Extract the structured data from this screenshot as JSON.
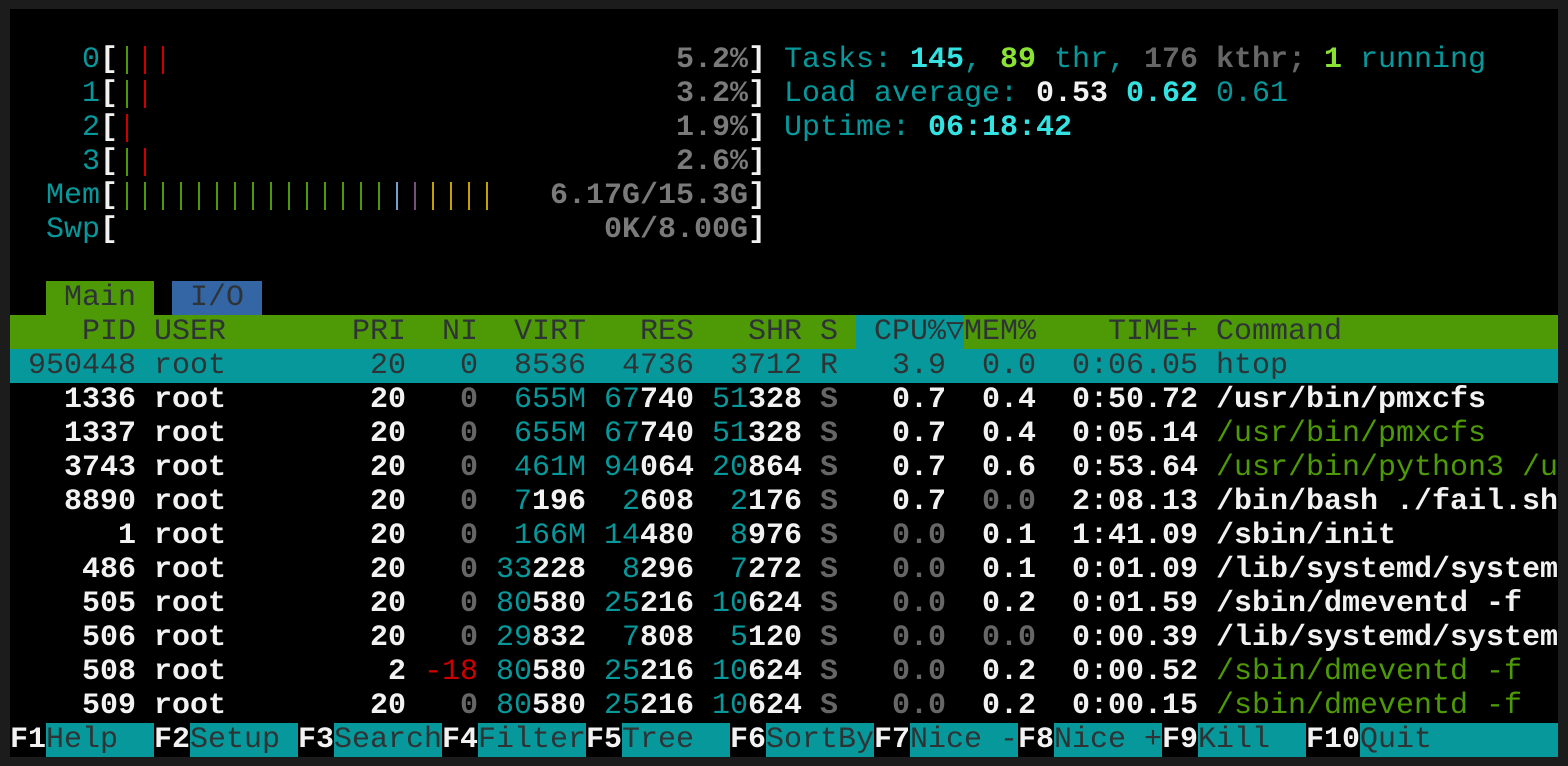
{
  "colors": {
    "teal": "#06989a",
    "cyan": "#34e2e2",
    "green": "#4e9a06",
    "lime": "#8ae234",
    "red": "#cc0000",
    "yellow": "#c4a000",
    "blue": "#729fcf",
    "purple": "#75507b",
    "gray": "#666666"
  },
  "meters": [
    {
      "label": "0",
      "bars": [
        "green",
        "red",
        "red"
      ],
      "value": "5.2%"
    },
    {
      "label": "1",
      "bars": [
        "green",
        "red"
      ],
      "value": "3.2%"
    },
    {
      "label": "2",
      "bars": [
        "red"
      ],
      "value": "1.9%"
    },
    {
      "label": "3",
      "bars": [
        "green",
        "red"
      ],
      "value": "2.6%"
    },
    {
      "label": "Mem",
      "bars": [
        "green",
        "green",
        "green",
        "green",
        "green",
        "green",
        "green",
        "green",
        "green",
        "green",
        "green",
        "green",
        "green",
        "green",
        "green",
        "blue",
        "purple",
        "yellow",
        "yellow",
        "yellow",
        "yellow"
      ],
      "value": "6.17G/15.3G"
    },
    {
      "label": "Swp",
      "bars": [],
      "value": "0K/8.00G"
    }
  ],
  "summary": {
    "tasks": [
      {
        "t": "Tasks: ",
        "c": "teal"
      },
      {
        "t": "145",
        "c": "cyan"
      },
      {
        "t": ", ",
        "c": "teal"
      },
      {
        "t": "89",
        "c": "lime"
      },
      {
        "t": " thr, ",
        "c": "teal"
      },
      {
        "t": "176",
        "c": "gray"
      },
      {
        "t": " kthr; ",
        "c": "gray"
      },
      {
        "t": "1",
        "c": "lime"
      },
      {
        "t": " running",
        "c": "teal"
      }
    ],
    "load": [
      {
        "t": "Load average: ",
        "c": "teal"
      },
      {
        "t": "0.53",
        "c": "w"
      },
      {
        "t": " ",
        "c": "teal"
      },
      {
        "t": "0.62",
        "c": "cyan"
      },
      {
        "t": " ",
        "c": "teal"
      },
      {
        "t": "0.61",
        "c": "teal"
      }
    ],
    "uptime": [
      {
        "t": "Uptime: ",
        "c": "teal"
      },
      {
        "t": "06:18:42",
        "c": "cyan"
      }
    ]
  },
  "tabs": [
    {
      "label": "Main",
      "active": true
    },
    {
      "label": "I/O",
      "active": false
    }
  ],
  "columns": {
    "pid": "PID",
    "user": "USER",
    "pri": "PRI",
    "ni": "NI",
    "virt": "VIRT",
    "res": "RES",
    "shr": "SHR",
    "s": "S",
    "cpu": "CPU%▽",
    "mem": "MEM%",
    "time": "TIME+",
    "command": "Command"
  },
  "processes": [
    {
      "pid": "950448",
      "user": "root",
      "pri": "20",
      "ni": "0",
      "virt": "8536",
      "res": "4736",
      "shr": "3712",
      "s": "R",
      "cpu": "3.9",
      "mem": "0.0",
      "time": "0:06.05",
      "command": "htop",
      "selected": true,
      "thread": false
    },
    {
      "pid": "1336",
      "user": "root",
      "pri": "20",
      "ni": "0",
      "virt": "655M",
      "res": "67740",
      "shr": "51328",
      "s": "S",
      "cpu": "0.7",
      "mem": "0.4",
      "time": "0:50.72",
      "command": "/usr/bin/pmxcfs",
      "thread": false
    },
    {
      "pid": "1337",
      "user": "root",
      "pri": "20",
      "ni": "0",
      "virt": "655M",
      "res": "67740",
      "shr": "51328",
      "s": "S",
      "cpu": "0.7",
      "mem": "0.4",
      "time": "0:05.14",
      "command": "/usr/bin/pmxcfs",
      "thread": true
    },
    {
      "pid": "3743",
      "user": "root",
      "pri": "20",
      "ni": "0",
      "virt": "461M",
      "res": "94064",
      "shr": "20864",
      "s": "S",
      "cpu": "0.7",
      "mem": "0.6",
      "time": "0:53.64",
      "command": "/usr/bin/python3 /u",
      "thread": true
    },
    {
      "pid": "8890",
      "user": "root",
      "pri": "20",
      "ni": "0",
      "virt": "7196",
      "res": "2608",
      "shr": "2176",
      "s": "S",
      "cpu": "0.7",
      "mem": "0.0",
      "time": "2:08.13",
      "command": "/bin/bash ./fail.sh",
      "thread": false
    },
    {
      "pid": "1",
      "user": "root",
      "pri": "20",
      "ni": "0",
      "virt": "166M",
      "res": "14480",
      "shr": "8976",
      "s": "S",
      "cpu": "0.0",
      "mem": "0.1",
      "time": "1:41.09",
      "command": "/sbin/init",
      "thread": false
    },
    {
      "pid": "486",
      "user": "root",
      "pri": "20",
      "ni": "0",
      "virt": "33228",
      "res": "8296",
      "shr": "7272",
      "s": "S",
      "cpu": "0.0",
      "mem": "0.1",
      "time": "0:01.09",
      "command": "/lib/systemd/system",
      "thread": false
    },
    {
      "pid": "505",
      "user": "root",
      "pri": "20",
      "ni": "0",
      "virt": "80580",
      "res": "25216",
      "shr": "10624",
      "s": "S",
      "cpu": "0.0",
      "mem": "0.2",
      "time": "0:01.59",
      "command": "/sbin/dmeventd -f",
      "thread": false
    },
    {
      "pid": "506",
      "user": "root",
      "pri": "20",
      "ni": "0",
      "virt": "29832",
      "res": "7808",
      "shr": "5120",
      "s": "S",
      "cpu": "0.0",
      "mem": "0.0",
      "time": "0:00.39",
      "command": "/lib/systemd/system",
      "thread": false
    },
    {
      "pid": "508",
      "user": "root",
      "pri": "2",
      "ni": "-18",
      "virt": "80580",
      "res": "25216",
      "shr": "10624",
      "s": "S",
      "cpu": "0.0",
      "mem": "0.2",
      "time": "0:00.52",
      "command": "/sbin/dmeventd -f",
      "thread": true
    },
    {
      "pid": "509",
      "user": "root",
      "pri": "20",
      "ni": "0",
      "virt": "80580",
      "res": "25216",
      "shr": "10624",
      "s": "S",
      "cpu": "0.0",
      "mem": "0.2",
      "time": "0:00.15",
      "command": "/sbin/dmeventd -f",
      "thread": true
    }
  ],
  "footer": [
    {
      "key": "F1",
      "label": "Help"
    },
    {
      "key": "F2",
      "label": "Setup"
    },
    {
      "key": "F3",
      "label": "Search"
    },
    {
      "key": "F4",
      "label": "Filter"
    },
    {
      "key": "F5",
      "label": "Tree"
    },
    {
      "key": "F6",
      "label": "SortBy"
    },
    {
      "key": "F7",
      "label": "Nice -"
    },
    {
      "key": "F8",
      "label": "Nice +"
    },
    {
      "key": "F9",
      "label": "Kill"
    },
    {
      "key": "F10",
      "label": "Quit"
    }
  ]
}
